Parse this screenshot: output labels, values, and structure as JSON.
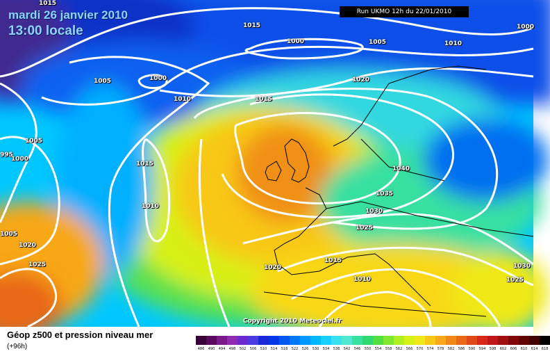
{
  "header": {
    "date": "mardi 26 janvier 2010",
    "time": "13:00 locale",
    "run": "Run UKMO 12h du 22/01/2010"
  },
  "footer": {
    "title": "Géop z500 et pression niveau mer",
    "subtitle": "(+96h)",
    "copyright": "Copyright 2010 Meteociel.fr"
  },
  "isobar_labels": [
    "1015",
    "1015",
    "1000",
    "1005",
    "1010",
    "1000",
    "1005",
    "1000",
    "1010",
    "1015",
    "1020",
    "995",
    "1005",
    "1000",
    "1015",
    "1010",
    "1040",
    "1035",
    "1030",
    "1025",
    "1005",
    "1020",
    "1025",
    "1020",
    "1015",
    "1010",
    "1030",
    "1025"
  ],
  "scale": {
    "labels": [
      "486",
      "490",
      "494",
      "498",
      "502",
      "506",
      "510",
      "514",
      "518",
      "522",
      "526",
      "530",
      "534",
      "538",
      "542",
      "546",
      "550",
      "554",
      "558",
      "562",
      "566",
      "570",
      "574",
      "578",
      "582",
      "586",
      "590",
      "594",
      "598",
      "602",
      "606",
      "610",
      "614",
      "618"
    ],
    "colors": [
      "#3a0038",
      "#5a0a5e",
      "#7a1a8a",
      "#8f2ab0",
      "#6a2ad0",
      "#4a3ae0",
      "#1a28d8",
      "#0038e8",
      "#0058f0",
      "#0078f8",
      "#0098ff",
      "#00b8ff",
      "#18d0ff",
      "#38e0f0",
      "#50e8d0",
      "#38e0a0",
      "#30d870",
      "#50e040",
      "#80e830",
      "#b0f020",
      "#d8f018",
      "#f0e818",
      "#f8c818",
      "#f8a818",
      "#f08818",
      "#e86818",
      "#e04818",
      "#d82818",
      "#c01818",
      "#a01010",
      "#800808",
      "#600404",
      "#400000",
      "#000000"
    ]
  }
}
